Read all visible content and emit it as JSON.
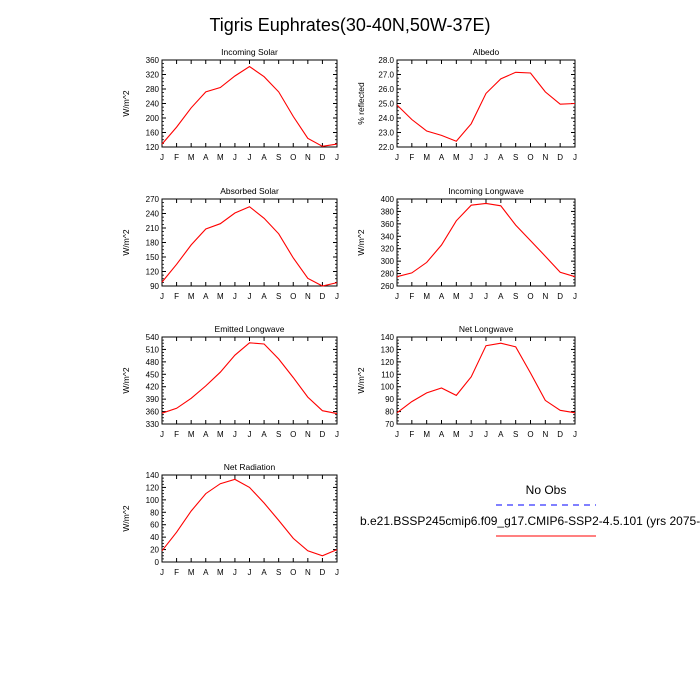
{
  "title": "Tigris Euphrates(30-40N,50W-37E)",
  "months": [
    "J",
    "F",
    "M",
    "A",
    "M",
    "J",
    "J",
    "A",
    "S",
    "O",
    "N",
    "D",
    "J"
  ],
  "colors": {
    "model": "#ff0000",
    "obs": "#0000ff",
    "axis": "#000000"
  },
  "legend": {
    "obs_label": "No Obs",
    "model_label": "b.e21.BSSP245cmip6.f09_g17.CMIP6-SSP2-4.5.101 (yrs 2075-"
  },
  "chart_data": [
    {
      "type": "line",
      "title": "Incoming Solar",
      "ylabel": "W/m^2",
      "ylim": [
        120,
        360
      ],
      "yticks": [
        120,
        160,
        200,
        240,
        280,
        320,
        360
      ],
      "series": [
        {
          "name": "b.e21.BSSP245cmip6.f09_g17.CMIP6-SSP2-4.5.101 (yrs 2075-",
          "values": [
            128,
            175,
            228,
            272,
            284,
            316,
            342,
            314,
            272,
            204,
            144,
            122,
            128
          ]
        }
      ]
    },
    {
      "type": "line",
      "title": "Albedo",
      "ylabel": "% reflected",
      "ylim": [
        22.0,
        28.0
      ],
      "yticks": [
        "22.0",
        "23.0",
        "24.0",
        "25.0",
        "26.0",
        "27.0",
        "28.0"
      ],
      "series": [
        {
          "name": "b.e21.BSSP245cmip6.f09_g17.CMIP6-SSP2-4.5.101 (yrs 2075-",
          "values": [
            24.9,
            23.9,
            23.1,
            22.8,
            22.4,
            23.6,
            25.7,
            26.7,
            27.15,
            27.1,
            25.8,
            24.95,
            25.0
          ]
        }
      ]
    },
    {
      "type": "line",
      "title": "Absorbed Solar",
      "ylabel": "W/m^2",
      "ylim": [
        90,
        270
      ],
      "yticks": [
        90,
        120,
        150,
        180,
        210,
        240,
        270
      ],
      "series": [
        {
          "name": "b.e21.BSSP245cmip6.f09_g17.CMIP6-SSP2-4.5.101 (yrs 2075-",
          "values": [
            98,
            135,
            175,
            208,
            219,
            241,
            254,
            230,
            198,
            148,
            106,
            90,
            97
          ]
        }
      ]
    },
    {
      "type": "line",
      "title": "Incoming Longwave",
      "ylabel": "W/m^2",
      "ylim": [
        260,
        400
      ],
      "yticks": [
        260,
        280,
        300,
        320,
        340,
        360,
        380,
        400
      ],
      "series": [
        {
          "name": "b.e21.BSSP245cmip6.f09_g17.CMIP6-SSP2-4.5.101 (yrs 2075-",
          "values": [
            275,
            281,
            298,
            326,
            365,
            390,
            393,
            389,
            358,
            333,
            308,
            282,
            275
          ]
        }
      ]
    },
    {
      "type": "line",
      "title": "Emitted Longwave",
      "ylabel": "W/m^2",
      "ylim": [
        330,
        540
      ],
      "yticks": [
        330,
        360,
        390,
        420,
        450,
        480,
        510,
        540
      ],
      "series": [
        {
          "name": "b.e21.BSSP245cmip6.f09_g17.CMIP6-SSP2-4.5.101 (yrs 2075-",
          "values": [
            356,
            368,
            392,
            422,
            455,
            496,
            526,
            523,
            487,
            442,
            395,
            362,
            355
          ]
        }
      ]
    },
    {
      "type": "line",
      "title": "Net Longwave",
      "ylabel": "W/m^2",
      "ylim": [
        70,
        140
      ],
      "yticks": [
        70,
        80,
        90,
        100,
        110,
        120,
        130,
        140
      ],
      "series": [
        {
          "name": "b.e21.BSSP245cmip6.f09_g17.CMIP6-SSP2-4.5.101 (yrs 2075-",
          "values": [
            79,
            88,
            95,
            99,
            93,
            108,
            133,
            135,
            132,
            111,
            89,
            81,
            79
          ]
        }
      ]
    },
    {
      "type": "line",
      "title": "Net Radiation",
      "ylabel": "W/m^2",
      "ylim": [
        0,
        140
      ],
      "yticks": [
        0,
        20,
        40,
        60,
        80,
        100,
        120,
        140
      ],
      "series": [
        {
          "name": "b.e21.BSSP245cmip6.f09_g17.CMIP6-SSP2-4.5.101 (yrs 2075-",
          "values": [
            18,
            48,
            82,
            110,
            126,
            133,
            120,
            95,
            67,
            38,
            18,
            10,
            20
          ]
        }
      ]
    }
  ]
}
